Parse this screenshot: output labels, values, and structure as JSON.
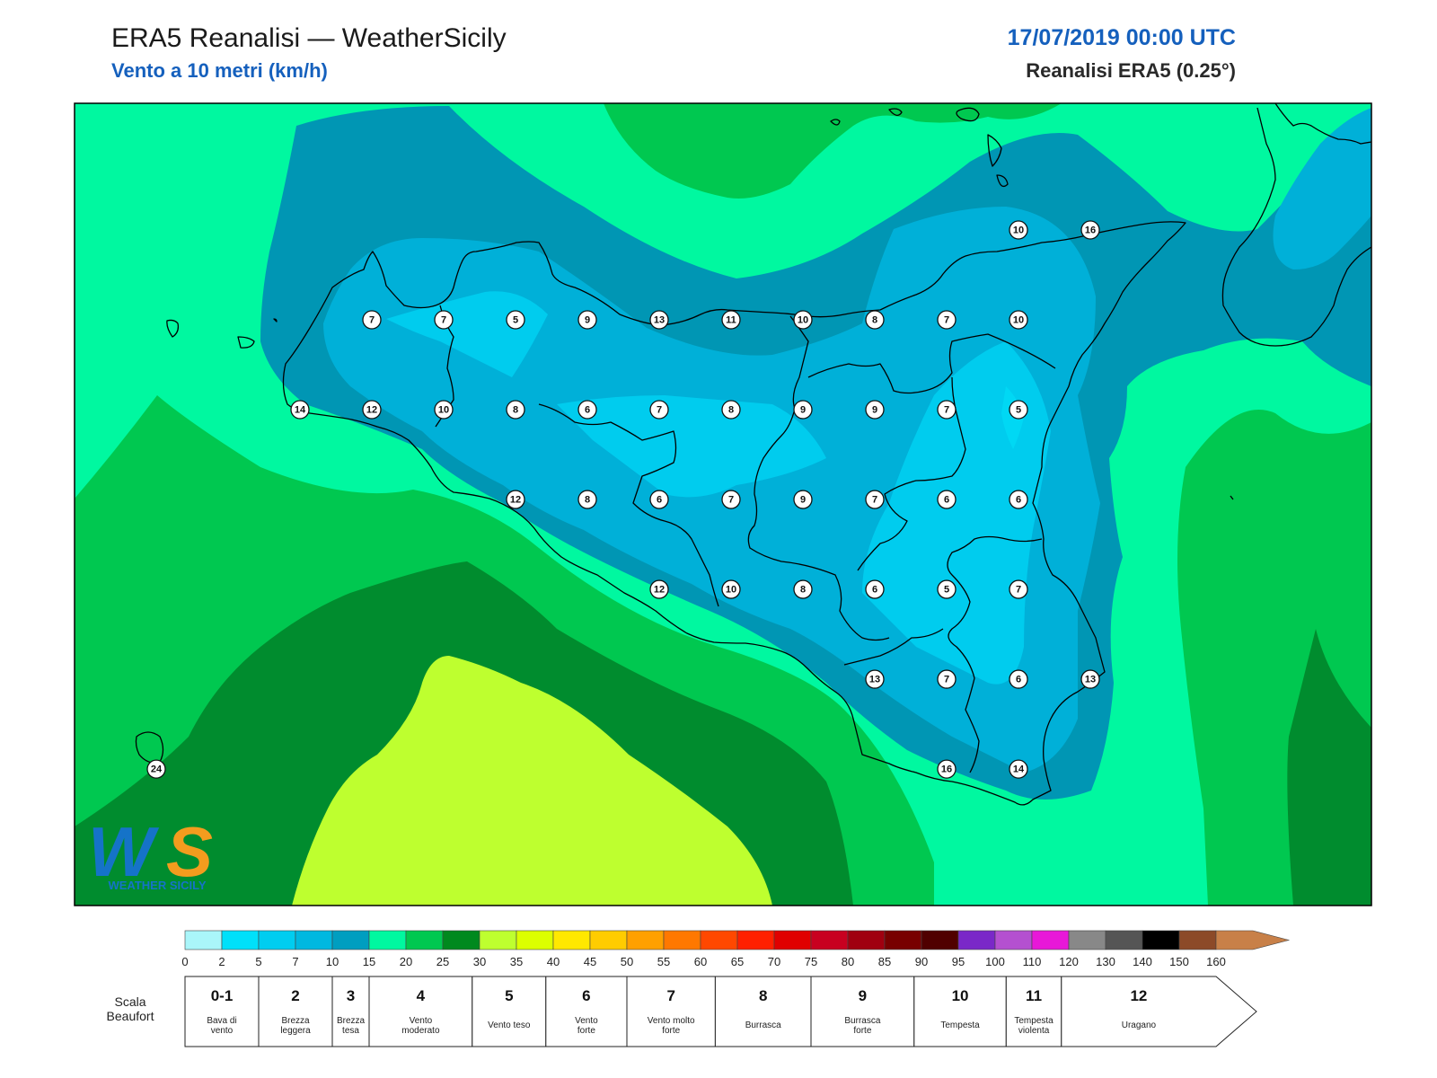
{
  "header": {
    "title": "ERA5 Reanalisi — WeatherSicily",
    "subtitle": "Vento a 10 metri (km/h)",
    "date": "17/07/2019 00:00 UTC",
    "model": "Reanalisi ERA5 (0.25°)"
  },
  "logo": {
    "letters": "WS",
    "text": "WEATHER SICILY",
    "icon": "weather-sicily-logo-icon"
  },
  "colors": {
    "ocean_fresh": "#00f8a0",
    "moderate": "#00c850",
    "strong_green": "#008c2e",
    "lime": "#beff2f",
    "light_blue": "#00ccee",
    "mid_blue": "#00b0d8",
    "deep_teal": "#0096b4",
    "coast": "#000000"
  },
  "stations": [
    {
      "v": "7",
      "lon": 12.7,
      "lat": 38.12
    },
    {
      "v": "7",
      "lon": 13.2,
      "lat": 38.12
    },
    {
      "v": "5",
      "lon": 13.7,
      "lat": 38.12
    },
    {
      "v": "9",
      "lon": 14.2,
      "lat": 38.12
    },
    {
      "v": "13",
      "lon": 14.7,
      "lat": 38.12
    },
    {
      "v": "11",
      "lon": 15.2,
      "lat": 38.12
    },
    {
      "v": "10",
      "lon": 15.7,
      "lat": 38.12
    },
    {
      "v": "8",
      "lon": 16.2,
      "lat": 38.12
    },
    {
      "v": "7",
      "lon": 16.7,
      "lat": 38.12
    },
    {
      "v": "10",
      "lon": 17.2,
      "lat": 38.12
    },
    {
      "v": "10",
      "lon": 17.2,
      "lat": 38.72
    },
    {
      "v": "16",
      "lon": 17.7,
      "lat": 38.72
    },
    {
      "v": "14",
      "lon": 12.2,
      "lat": 37.52
    },
    {
      "v": "12",
      "lon": 12.7,
      "lat": 37.52
    },
    {
      "v": "10",
      "lon": 13.2,
      "lat": 37.52
    },
    {
      "v": "8",
      "lon": 13.7,
      "lat": 37.52
    },
    {
      "v": "6",
      "lon": 14.2,
      "lat": 37.52
    },
    {
      "v": "7",
      "lon": 14.7,
      "lat": 37.52
    },
    {
      "v": "8",
      "lon": 15.2,
      "lat": 37.52
    },
    {
      "v": "9",
      "lon": 15.7,
      "lat": 37.52
    },
    {
      "v": "9",
      "lon": 16.2,
      "lat": 37.52
    },
    {
      "v": "7",
      "lon": 16.7,
      "lat": 37.52
    },
    {
      "v": "5",
      "lon": 17.2,
      "lat": 37.52
    },
    {
      "v": "12",
      "lon": 13.7,
      "lat": 36.92
    },
    {
      "v": "8",
      "lon": 14.2,
      "lat": 36.92
    },
    {
      "v": "6",
      "lon": 14.7,
      "lat": 36.92
    },
    {
      "v": "7",
      "lon": 15.2,
      "lat": 36.92
    },
    {
      "v": "9",
      "lon": 15.7,
      "lat": 36.92
    },
    {
      "v": "7",
      "lon": 16.2,
      "lat": 36.92
    },
    {
      "v": "6",
      "lon": 16.7,
      "lat": 36.92
    },
    {
      "v": "6",
      "lon": 17.2,
      "lat": 36.92
    },
    {
      "v": "12",
      "lon": 14.7,
      "lat": 36.32
    },
    {
      "v": "10",
      "lon": 15.2,
      "lat": 36.32
    },
    {
      "v": "8",
      "lon": 15.7,
      "lat": 36.32
    },
    {
      "v": "6",
      "lon": 16.2,
      "lat": 36.32
    },
    {
      "v": "5",
      "lon": 16.7,
      "lat": 36.32
    },
    {
      "v": "7",
      "lon": 17.2,
      "lat": 36.32
    },
    {
      "v": "13",
      "lon": 16.2,
      "lat": 35.72
    },
    {
      "v": "7",
      "lon": 16.7,
      "lat": 35.72
    },
    {
      "v": "6",
      "lon": 17.2,
      "lat": 35.72
    },
    {
      "v": "13",
      "lon": 17.7,
      "lat": 35.72
    },
    {
      "v": "16",
      "lon": 16.7,
      "lat": 35.12
    },
    {
      "v": "14",
      "lon": 17.2,
      "lat": 35.12
    },
    {
      "v": "24",
      "lon": 11.2,
      "lat": 35.12
    }
  ],
  "colorbar": {
    "stops": [
      "0",
      "2",
      "5",
      "7",
      "10",
      "15",
      "20",
      "25",
      "30",
      "35",
      "40",
      "45",
      "50",
      "55",
      "60",
      "65",
      "70",
      "75",
      "80",
      "85",
      "90",
      "95",
      "100",
      "110",
      "120",
      "130",
      "140",
      "150",
      "160"
    ],
    "colors": [
      "#aaf6fa",
      "#00e0fa",
      "#00cdf0",
      "#00b8e0",
      "#009ec0",
      "#00f8a0",
      "#00c850",
      "#00891e",
      "#beff2f",
      "#dcff00",
      "#ffe800",
      "#ffcc00",
      "#ffa000",
      "#ff7800",
      "#ff4800",
      "#ff2000",
      "#e00000",
      "#c80020",
      "#a00010",
      "#780000",
      "#500000",
      "#7a28c8",
      "#b450d0",
      "#e818d8",
      "#888888",
      "#555555",
      "#000000",
      "#8c4a28",
      "#c88048"
    ]
  },
  "beaufort": {
    "label": "Scala\nBeaufort",
    "label_lines": [
      "Scala",
      "Beaufort"
    ],
    "cells": [
      {
        "n": "0-1",
        "desc": [
          "Bava di",
          "vento"
        ],
        "from": 0,
        "to": 2
      },
      {
        "n": "2",
        "desc": [
          "Brezza",
          "leggera"
        ],
        "from": 2,
        "to": 4
      },
      {
        "n": "3",
        "desc": [
          "Brezza",
          "tesa"
        ],
        "from": 4,
        "to": 5
      },
      {
        "n": "4",
        "desc": [
          "Vento",
          "moderato"
        ],
        "from": 5,
        "to": 7.8
      },
      {
        "n": "5",
        "desc": [
          "Vento teso"
        ],
        "from": 7.8,
        "to": 9.8
      },
      {
        "n": "6",
        "desc": [
          "Vento",
          "forte"
        ],
        "from": 9.8,
        "to": 12
      },
      {
        "n": "7",
        "desc": [
          "Vento molto",
          "forte"
        ],
        "from": 12,
        "to": 14.4
      },
      {
        "n": "8",
        "desc": [
          "Burrasca"
        ],
        "from": 14.4,
        "to": 17
      },
      {
        "n": "9",
        "desc": [
          "Burrasca",
          "forte"
        ],
        "from": 17,
        "to": 19.8
      },
      {
        "n": "10",
        "desc": [
          "Tempesta"
        ],
        "from": 19.8,
        "to": 22.3
      },
      {
        "n": "11",
        "desc": [
          "Tempesta",
          "violenta"
        ],
        "from": 22.3,
        "to": 23.8
      },
      {
        "n": "12",
        "desc": [
          "Uragano"
        ],
        "from": 23.8,
        "to": 28
      }
    ]
  }
}
